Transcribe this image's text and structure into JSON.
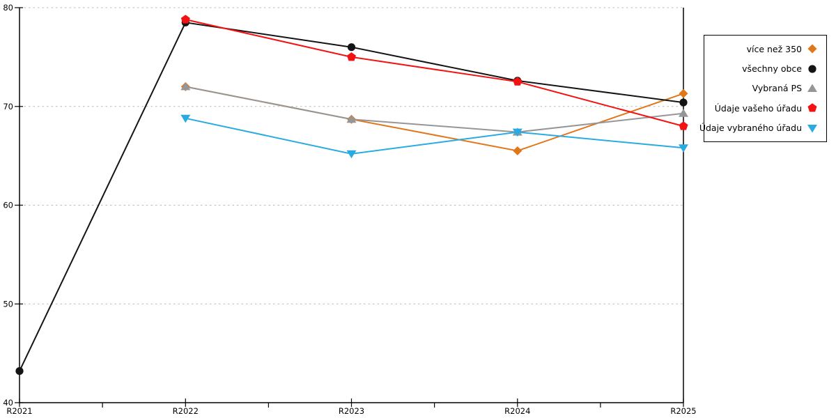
{
  "chart_data": {
    "type": "line",
    "title": "",
    "xlabel": "",
    "ylabel": "",
    "x_categories": [
      "R2021",
      "R2022",
      "R2023",
      "R2024",
      "R2025"
    ],
    "ylim": [
      40,
      80
    ],
    "yticks": [
      40,
      50,
      60,
      70,
      80
    ],
    "grid": {
      "horizontal": true,
      "style": "dashed",
      "color": "#b9b9b9"
    },
    "axis_color": "#000000",
    "legend_position": "right",
    "series": [
      {
        "name": "více než 350",
        "marker": "diamond",
        "color": "#e0771b",
        "values": [
          null,
          72.0,
          68.7,
          65.5,
          71.3
        ]
      },
      {
        "name": "všechny obce",
        "marker": "circle",
        "color": "#141414",
        "values": [
          43.2,
          78.5,
          76.0,
          72.6,
          70.4
        ]
      },
      {
        "name": "Vybraná PS",
        "marker": "triangle-up",
        "color": "#969696",
        "values": [
          null,
          72.0,
          68.7,
          67.4,
          69.3
        ]
      },
      {
        "name": "Údaje vašeho úřadu",
        "marker": "pentagon",
        "color": "#f21212",
        "values": [
          null,
          78.8,
          75.0,
          72.5,
          68.0
        ]
      },
      {
        "name": "Údaje vybraného úřadu",
        "marker": "triangle-down",
        "color": "#29abe2",
        "values": [
          null,
          68.8,
          65.2,
          67.4,
          65.8
        ]
      }
    ]
  }
}
